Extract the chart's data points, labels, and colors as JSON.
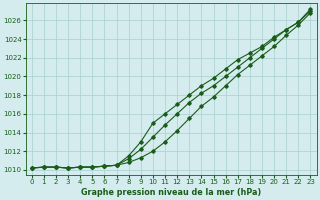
{
  "title": "Graphe pression niveau de la mer (hPa)",
  "background_color": "#d4ecee",
  "grid_color": "#aacfcf",
  "line_color": "#1a5c1a",
  "xlim": [
    -0.5,
    23.5
  ],
  "ylim": [
    1009.5,
    1027.8
  ],
  "yticks": [
    1010,
    1012,
    1014,
    1016,
    1018,
    1020,
    1022,
    1024,
    1026
  ],
  "xticks": [
    0,
    1,
    2,
    3,
    4,
    5,
    6,
    7,
    8,
    9,
    10,
    11,
    12,
    13,
    14,
    15,
    16,
    17,
    18,
    19,
    20,
    21,
    22,
    23
  ],
  "line1": [
    1010.2,
    1010.3,
    1010.3,
    1010.2,
    1010.3,
    1010.3,
    1010.4,
    1010.5,
    1010.8,
    1011.3,
    1012.0,
    1013.0,
    1014.2,
    1015.5,
    1016.8,
    1017.8,
    1019.0,
    1020.2,
    1021.2,
    1022.2,
    1023.2,
    1024.4,
    1025.5,
    1026.8
  ],
  "line2": [
    1010.2,
    1010.3,
    1010.3,
    1010.2,
    1010.3,
    1010.3,
    1010.4,
    1010.5,
    1011.2,
    1012.2,
    1013.5,
    1014.8,
    1016.0,
    1017.2,
    1018.2,
    1019.0,
    1020.0,
    1021.0,
    1022.0,
    1023.0,
    1024.0,
    1025.0,
    1025.8,
    1027.0
  ],
  "line3": [
    1010.2,
    1010.3,
    1010.3,
    1010.2,
    1010.3,
    1010.3,
    1010.4,
    1010.5,
    1011.5,
    1013.0,
    1015.0,
    1016.0,
    1017.0,
    1018.0,
    1019.0,
    1019.8,
    1020.8,
    1021.8,
    1022.5,
    1023.2,
    1024.2,
    1025.0,
    1025.8,
    1027.2
  ],
  "figsize": [
    3.2,
    2.0
  ],
  "dpi": 100
}
